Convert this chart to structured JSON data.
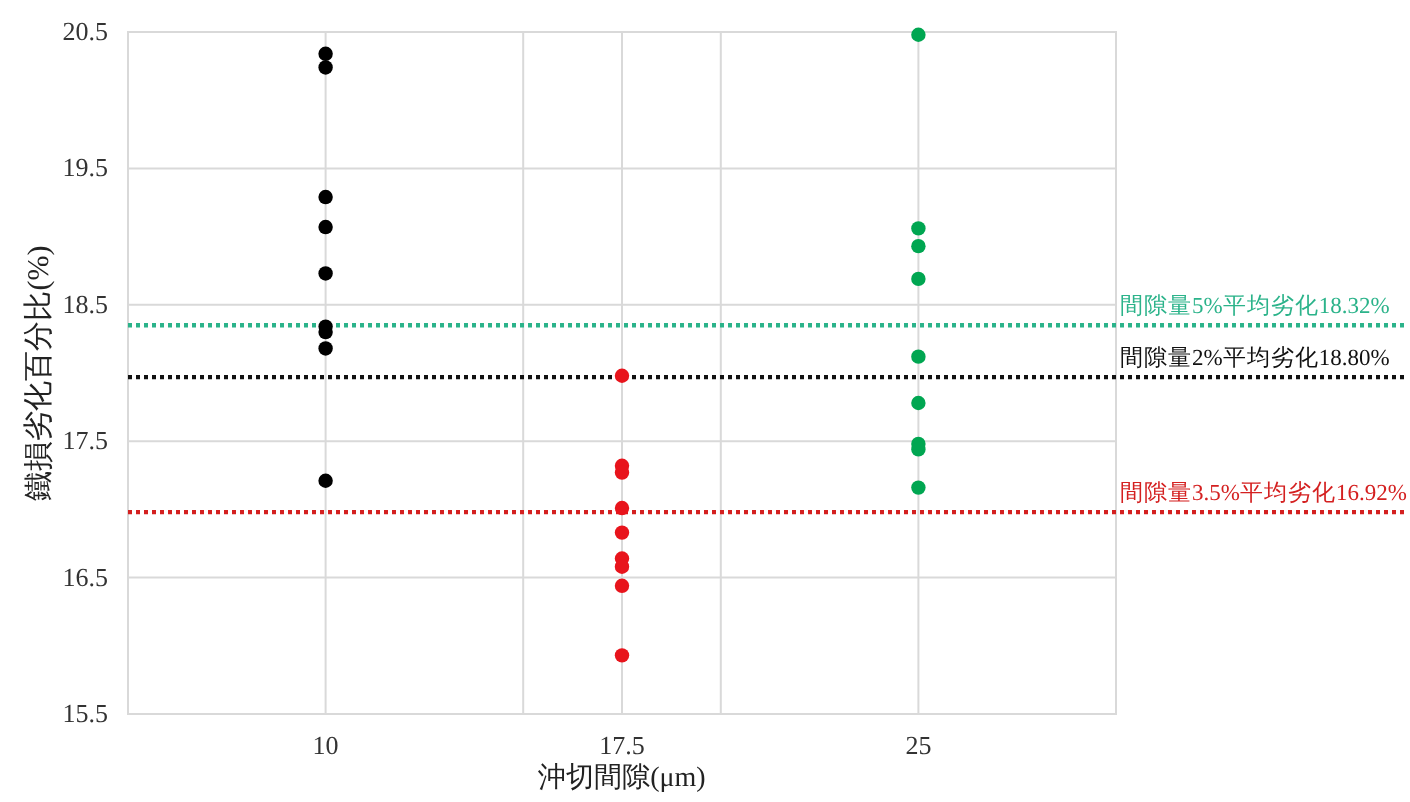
{
  "chart_data": {
    "type": "scatter",
    "xlabel": "沖切間隙(μm)",
    "ylabel": "鐵損劣化百分比(%)",
    "xlim": [
      5,
      30
    ],
    "xticks": [
      {
        "value": 10,
        "label": "10"
      },
      {
        "value": 15,
        "label": null
      },
      {
        "value": 17.5,
        "label": "17.5"
      },
      {
        "value": 20,
        "label": null
      },
      {
        "value": 25,
        "label": "25"
      }
    ],
    "ylim": [
      15.5,
      20.5
    ],
    "yticks": [
      15.5,
      16.5,
      17.5,
      18.5,
      19.5,
      20.5
    ],
    "grid": true,
    "marker": "circle",
    "series": [
      {
        "color": "#000000",
        "x": [
          10,
          10,
          10,
          10,
          10,
          10,
          10,
          10,
          10
        ],
        "values": [
          20.34,
          20.24,
          19.29,
          19.07,
          18.73,
          18.34,
          18.3,
          18.18,
          17.21
        ]
      },
      {
        "color": "#e8141c",
        "x": [
          17.5,
          17.5,
          17.5,
          17.5,
          17.5,
          17.5,
          17.5,
          17.5,
          17.5
        ],
        "values": [
          17.98,
          17.32,
          17.27,
          17.01,
          16.83,
          16.64,
          16.58,
          16.44,
          15.93
        ]
      },
      {
        "color": "#00a651",
        "x": [
          25,
          25,
          25,
          25,
          25,
          25,
          25,
          25,
          25
        ],
        "values": [
          20.48,
          19.06,
          18.93,
          18.69,
          18.12,
          17.78,
          17.48,
          17.44,
          17.16
        ]
      }
    ],
    "ref_lines": [
      {
        "axis": "y",
        "value": 18.35,
        "label": "間隙量5%平均劣化18.32%",
        "color": "#2bb38a",
        "line_style": "dotted"
      },
      {
        "axis": "y",
        "value": 17.97,
        "label": "間隙量2%平均劣化18.80%",
        "color": "#111111",
        "line_style": "dotted"
      },
      {
        "axis": "y",
        "value": 16.98,
        "label": "間隙量3.5%平均劣化16.92%",
        "color": "#d42020",
        "line_style": "dotted"
      }
    ]
  }
}
